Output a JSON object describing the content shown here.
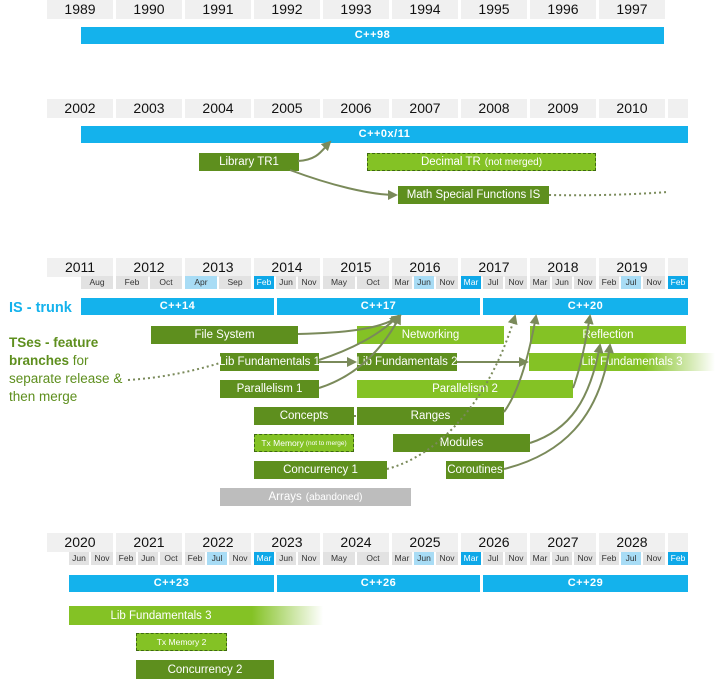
{
  "timeline1": {
    "years": [
      "1989",
      "1990",
      "1991",
      "1992",
      "1993",
      "1994",
      "1995",
      "1996",
      "1997"
    ],
    "standard": "C++98"
  },
  "timeline2": {
    "years": [
      "2002",
      "2003",
      "2004",
      "2005",
      "2006",
      "2007",
      "2008",
      "2009",
      "2010"
    ],
    "standard": "C++0x/11",
    "library_tr1": "Library TR1",
    "decimal_tr": "Decimal TR",
    "decimal_note": "(not merged)",
    "math_special": "Math Special Functions IS"
  },
  "timeline3": {
    "years": [
      "2011",
      "2012",
      "2013",
      "2014",
      "2015",
      "2016",
      "2017",
      "2018",
      "2019"
    ],
    "months": [
      "Aug",
      "Feb",
      "Oct",
      "Apr",
      "Sep",
      "Feb",
      "Jun",
      "Nov",
      "May",
      "Oct",
      "Mar",
      "Jun",
      "Nov",
      "Mar",
      "Jul",
      "Nov",
      "Mar",
      "Jun",
      "Nov",
      "Feb",
      "Jul",
      "Nov",
      "Feb"
    ],
    "trunk_label": "IS - trunk",
    "branches_bold": "TSes - feature branches",
    "branches_rest": " for separate release & then merge",
    "standards": [
      "C++14",
      "C++17",
      "C++20"
    ],
    "ts": {
      "file_system": "File System",
      "networking": "Networking",
      "reflection": "Reflection",
      "lib_fund_1": "Lib Fundamentals 1",
      "lib_fund_2": "Lib Fundamentals 2",
      "lib_fund_3": "Lib Fundamentals 3",
      "parallelism_1": "Parallelism 1",
      "parallelism_2": "Parallelism 2",
      "concepts": "Concepts",
      "ranges": "Ranges",
      "tx_memory": "Tx Memory",
      "tx_memory_note": "(not to merge)",
      "modules": "Modules",
      "concurrency_1": "Concurrency 1",
      "coroutines": "Coroutines",
      "arrays": "Arrays",
      "arrays_note": "(abandoned)"
    }
  },
  "timeline4": {
    "years": [
      "2020",
      "2021",
      "2022",
      "2023",
      "2024",
      "2025",
      "2026",
      "2027",
      "2028"
    ],
    "months": [
      "Jun",
      "Nov",
      "Feb",
      "Jun",
      "Oct",
      "Feb",
      "Jul",
      "Nov",
      "Mar",
      "Jun",
      "Nov",
      "May",
      "Oct",
      "Mar",
      "Jun",
      "Nov",
      "Mar",
      "Jul",
      "Nov",
      "Mar",
      "Jun",
      "Nov",
      "Feb",
      "Jul",
      "Nov",
      "Feb"
    ],
    "standards": [
      "C++23",
      "C++26",
      "C++29"
    ],
    "lib_fund_3": "Lib Fundamentals 3",
    "tx_memory_2": "Tx Memory 2",
    "concurrency_2": "Concurrency 2"
  },
  "colors": {
    "standard_bar": "#14b2ec",
    "ts_dark": "#5e8f1e",
    "ts_light": "#84c225",
    "month_blue": "#0ea8e8",
    "month_light": "#a8dcf5"
  }
}
